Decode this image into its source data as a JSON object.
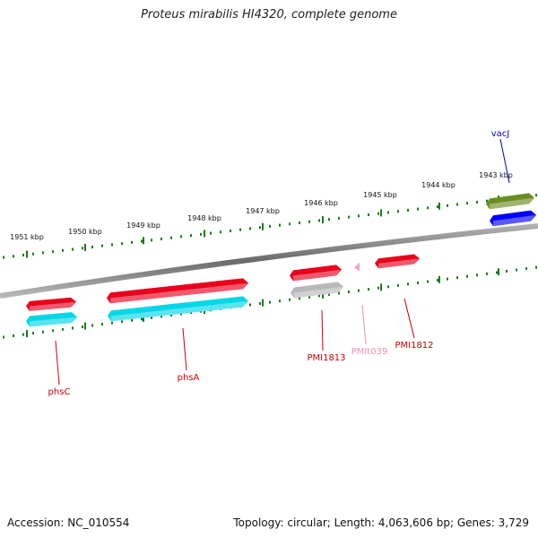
{
  "title": "Proteus mirabilis HI4320, complete genome",
  "footer": {
    "accession": "Accession: NC_010554",
    "summary": "Topology: circular; Length: 4,063,606 bp; Genes: 3,729"
  },
  "ruler": {
    "ticks": [
      {
        "label": "1951 kbp"
      },
      {
        "label": "1950 kbp"
      },
      {
        "label": "1949 kbp"
      },
      {
        "label": "1948 kbp"
      },
      {
        "label": "1947 kbp"
      },
      {
        "label": "1946 kbp"
      },
      {
        "label": "1945 kbp"
      },
      {
        "label": "1944 kbp"
      },
      {
        "label": "1943 kbp"
      }
    ]
  },
  "genes": [
    {
      "name": "vacJ",
      "color": "#6b8e23",
      "strand": "forward"
    },
    {
      "name": "",
      "color": "#0000ff",
      "strand": "forward"
    },
    {
      "name": "PMI1812",
      "color": "#e8001c",
      "strand": "forward"
    },
    {
      "name": "PMIt039",
      "color": "#f0a0c8",
      "strand": "forward"
    },
    {
      "name": "PMI1813",
      "color": "#e8001c",
      "strand": "forward"
    },
    {
      "name": "",
      "color": "#b8b8b8",
      "strand": "forward"
    },
    {
      "name": "phsA",
      "color": "#e8001c",
      "strand": "forward"
    },
    {
      "name": "",
      "color": "#00d8e8",
      "strand": "forward"
    },
    {
      "name": "phsC",
      "color": "#e8001c",
      "strand": "forward"
    },
    {
      "name": "",
      "color": "#00d8e8",
      "strand": "forward"
    }
  ],
  "colors": {
    "backbone": "#888888",
    "ruler": "#1a7a1a",
    "label_red": "#cc0000",
    "label_pink": "#e890b8",
    "label_blue": "#0000cc"
  }
}
